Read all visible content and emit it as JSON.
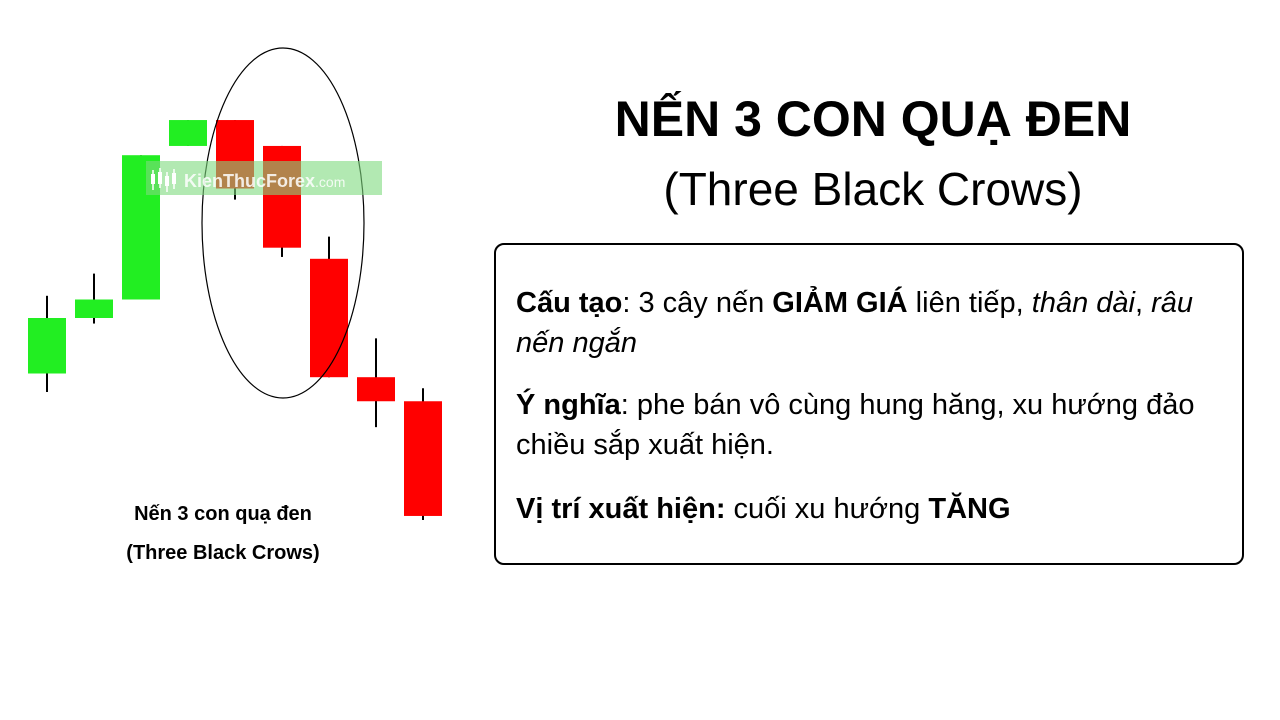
{
  "chart_data": {
    "type": "candlestick",
    "candles": [
      {
        "open": 7,
        "close": 10,
        "high": 11.2,
        "low": 6.0
      },
      {
        "open": 10,
        "close": 11,
        "high": 12.4,
        "low": 9.7
      },
      {
        "open": 11,
        "close": 18.8,
        "high": 18.8,
        "low": 11.0
      },
      {
        "open": 19.3,
        "close": 20.7,
        "high": 20.7,
        "low": 19.3
      },
      {
        "open": 20.7,
        "close": 17.0,
        "high": 20.7,
        "low": 16.4
      },
      {
        "open": 19.3,
        "close": 13.8,
        "high": 19.3,
        "low": 13.3
      },
      {
        "open": 13.2,
        "close": 6.8,
        "high": 14.4,
        "low": 6.8
      },
      {
        "open": 6.8,
        "close": 5.5,
        "high": 8.9,
        "low": 4.1
      },
      {
        "open": 5.5,
        "close": -0.7,
        "high": 6.2,
        "low": -2.7
      }
    ],
    "highlighted": [
      4,
      5,
      6
    ],
    "colors": {
      "up": "#22ee22",
      "down": "#ff0000"
    }
  },
  "watermark": {
    "main": "KienThucForex",
    "suffix": ".com"
  },
  "caption": {
    "line1": "Nến 3 con quạ đen",
    "line2": "(Three Black Crows)"
  },
  "title": {
    "main": "NẾN 3 CON QUẠ ĐEN",
    "sub": "(Three Black Crows)"
  },
  "info": {
    "structure": {
      "label": "Cấu tạo",
      "text1": ": 3 cây nến ",
      "bold": "GIẢM GIÁ",
      "text2": " liên tiếp, ",
      "italic1": "thân dài",
      "text3": ", ",
      "italic2": "râu nến ngắn"
    },
    "meaning": {
      "label": "Ý nghĩa",
      "text": ": phe bán vô cùng hung hăng, xu hướng đảo chiều sắp xuất hiện."
    },
    "position": {
      "label": "Vị trí xuất hiện:",
      "text": " cuối xu hướng ",
      "bold": "TĂNG"
    }
  }
}
